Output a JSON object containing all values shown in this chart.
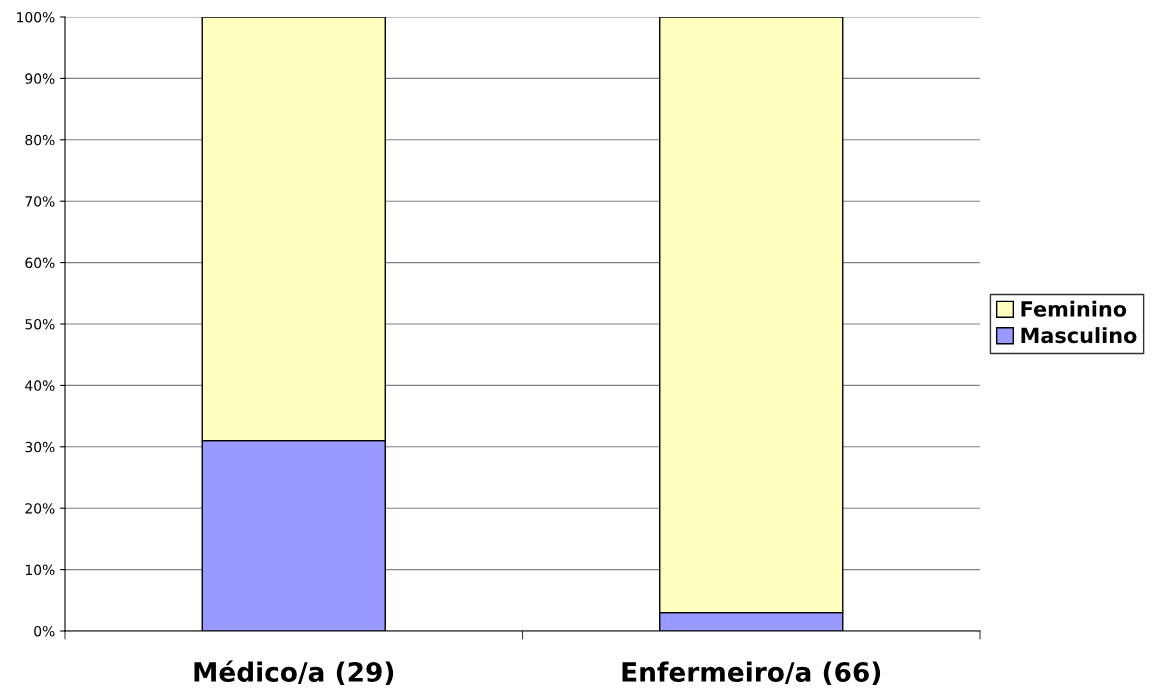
{
  "chart_data": {
    "type": "bar",
    "stacked": true,
    "categories": [
      "Médico/a (29)",
      "Enfermeiro/a (66)"
    ],
    "series": [
      {
        "name": "Masculino",
        "color": "#9999ff",
        "values": [
          31,
          3
        ]
      },
      {
        "name": "Feminino",
        "color": "#ffffc0",
        "values": [
          69,
          97
        ]
      }
    ],
    "ylim": [
      0,
      100
    ],
    "yticks": [
      {
        "value": 0,
        "label": "0%"
      },
      {
        "value": 10,
        "label": "10%"
      },
      {
        "value": 20,
        "label": "20%"
      },
      {
        "value": 30,
        "label": "30%"
      },
      {
        "value": 40,
        "label": "40%"
      },
      {
        "value": 50,
        "label": "50%"
      },
      {
        "value": 60,
        "label": "60%"
      },
      {
        "value": 70,
        "label": "70%"
      },
      {
        "value": 80,
        "label": "80%"
      },
      {
        "value": 90,
        "label": "90%"
      },
      {
        "value": 100,
        "label": "100%"
      }
    ],
    "grid": "y",
    "legend": "right"
  }
}
